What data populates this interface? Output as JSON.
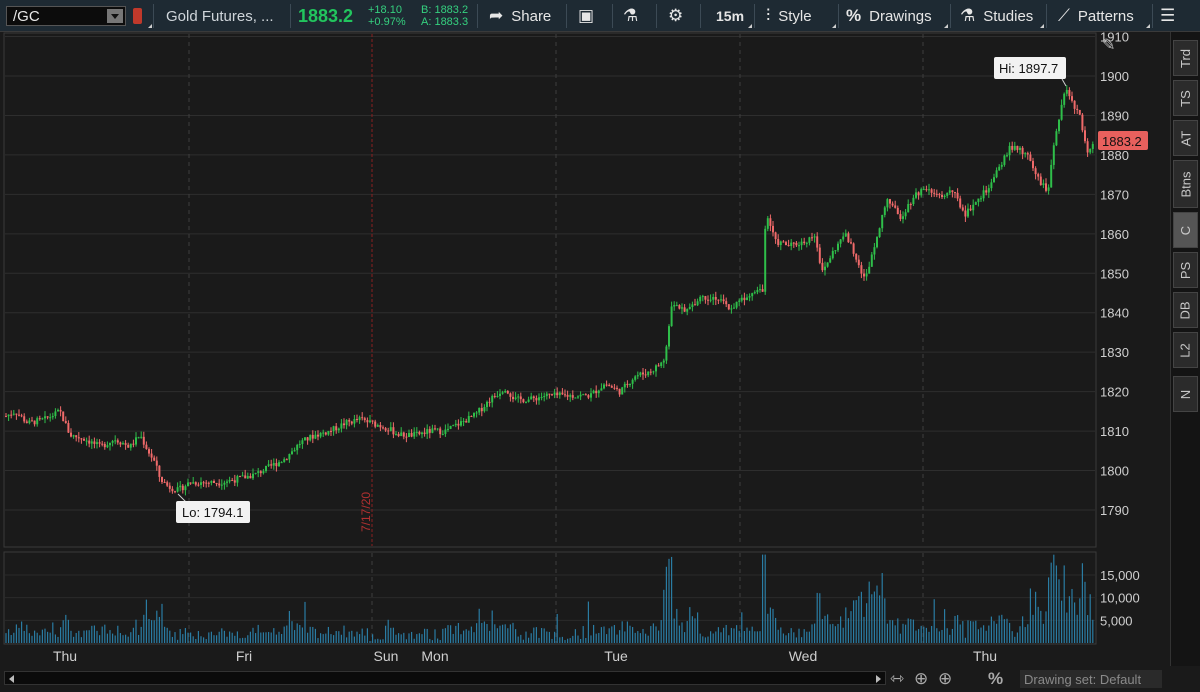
{
  "toolbar": {
    "symbol": "/GC",
    "description": "Gold Futures, ...",
    "last_price": "1883.2",
    "net_change": "+18.10",
    "pct_change": "+0.97%",
    "bid": "B: 1883.2",
    "ask": "A: 1883.3",
    "share_label": "Share",
    "timeframe_label": "15m",
    "style_label": "Style",
    "drawings_label": "Drawings",
    "studies_label": "Studies",
    "patterns_label": "Patterns"
  },
  "side_tabs": [
    "Trd",
    "TS",
    "AT",
    "Btns",
    "C",
    "PS",
    "DB",
    "L2",
    "N"
  ],
  "chart_data": {
    "type": "candlestick",
    "symbol": "/GC",
    "interval": "15m",
    "price_axis": {
      "ticks": [
        1790,
        1800,
        1810,
        1820,
        1830,
        1840,
        1850,
        1860,
        1870,
        1880,
        1890,
        1900,
        1910
      ],
      "range": [
        1781,
        1913
      ]
    },
    "volume_axis": {
      "ticks": [
        "5,000",
        "10,000",
        "15,000"
      ],
      "range": [
        0,
        20000
      ]
    },
    "x_labels": [
      "Thu",
      "Fri",
      "Sun",
      "Mon",
      "Tue",
      "Wed",
      "Thu"
    ],
    "session_divider_label": "7/17/20",
    "high_label": "Hi: 1897.7",
    "low_label": "Lo: 1794.1",
    "last_price_label": "1883.2",
    "price_path": [
      [
        0,
        1813
      ],
      [
        15,
        1815
      ],
      [
        28,
        1812
      ],
      [
        45,
        1813
      ],
      [
        60,
        1815
      ],
      [
        70,
        1809
      ],
      [
        85,
        1808
      ],
      [
        100,
        1806
      ],
      [
        115,
        1808
      ],
      [
        130,
        1806
      ],
      [
        140,
        1809
      ],
      [
        148,
        1805
      ],
      [
        155,
        1802
      ],
      [
        160,
        1798
      ],
      [
        168,
        1796
      ],
      [
        178,
        1795
      ],
      [
        190,
        1797
      ],
      [
        205,
        1797
      ],
      [
        220,
        1797
      ],
      [
        240,
        1798
      ],
      [
        255,
        1799
      ],
      [
        270,
        1801
      ],
      [
        285,
        1803
      ],
      [
        300,
        1807
      ],
      [
        315,
        1809
      ],
      [
        330,
        1810
      ],
      [
        345,
        1812
      ],
      [
        360,
        1813
      ],
      [
        372,
        1812
      ],
      [
        385,
        1811
      ],
      [
        400,
        1809
      ],
      [
        415,
        1809
      ],
      [
        430,
        1810
      ],
      [
        445,
        1810
      ],
      [
        460,
        1812
      ],
      [
        475,
        1814
      ],
      [
        490,
        1818
      ],
      [
        505,
        1821
      ],
      [
        515,
        1818
      ],
      [
        530,
        1818
      ],
      [
        545,
        1819
      ],
      [
        560,
        1819
      ],
      [
        575,
        1819
      ],
      [
        590,
        1819
      ],
      [
        605,
        1822
      ],
      [
        620,
        1820
      ],
      [
        635,
        1824
      ],
      [
        650,
        1825
      ],
      [
        665,
        1828
      ],
      [
        672,
        1843
      ],
      [
        685,
        1840
      ],
      [
        700,
        1844
      ],
      [
        715,
        1844
      ],
      [
        730,
        1841
      ],
      [
        745,
        1844
      ],
      [
        755,
        1846
      ],
      [
        763,
        1846
      ],
      [
        766,
        1866
      ],
      [
        775,
        1858
      ],
      [
        790,
        1857
      ],
      [
        805,
        1858
      ],
      [
        815,
        1860
      ],
      [
        822,
        1850
      ],
      [
        832,
        1855
      ],
      [
        845,
        1860
      ],
      [
        855,
        1855
      ],
      [
        865,
        1848
      ],
      [
        875,
        1858
      ],
      [
        887,
        1869
      ],
      [
        900,
        1864
      ],
      [
        915,
        1870
      ],
      [
        928,
        1872
      ],
      [
        940,
        1869
      ],
      [
        952,
        1871
      ],
      [
        965,
        1865
      ],
      [
        975,
        1868
      ],
      [
        990,
        1872
      ],
      [
        1000,
        1877
      ],
      [
        1010,
        1882
      ],
      [
        1020,
        1881
      ],
      [
        1030,
        1879
      ],
      [
        1040,
        1873
      ],
      [
        1048,
        1871
      ],
      [
        1055,
        1885
      ],
      [
        1062,
        1893
      ],
      [
        1067,
        1897
      ],
      [
        1072,
        1893
      ],
      [
        1080,
        1890
      ],
      [
        1087,
        1880
      ],
      [
        1094,
        1883
      ]
    ]
  }
}
